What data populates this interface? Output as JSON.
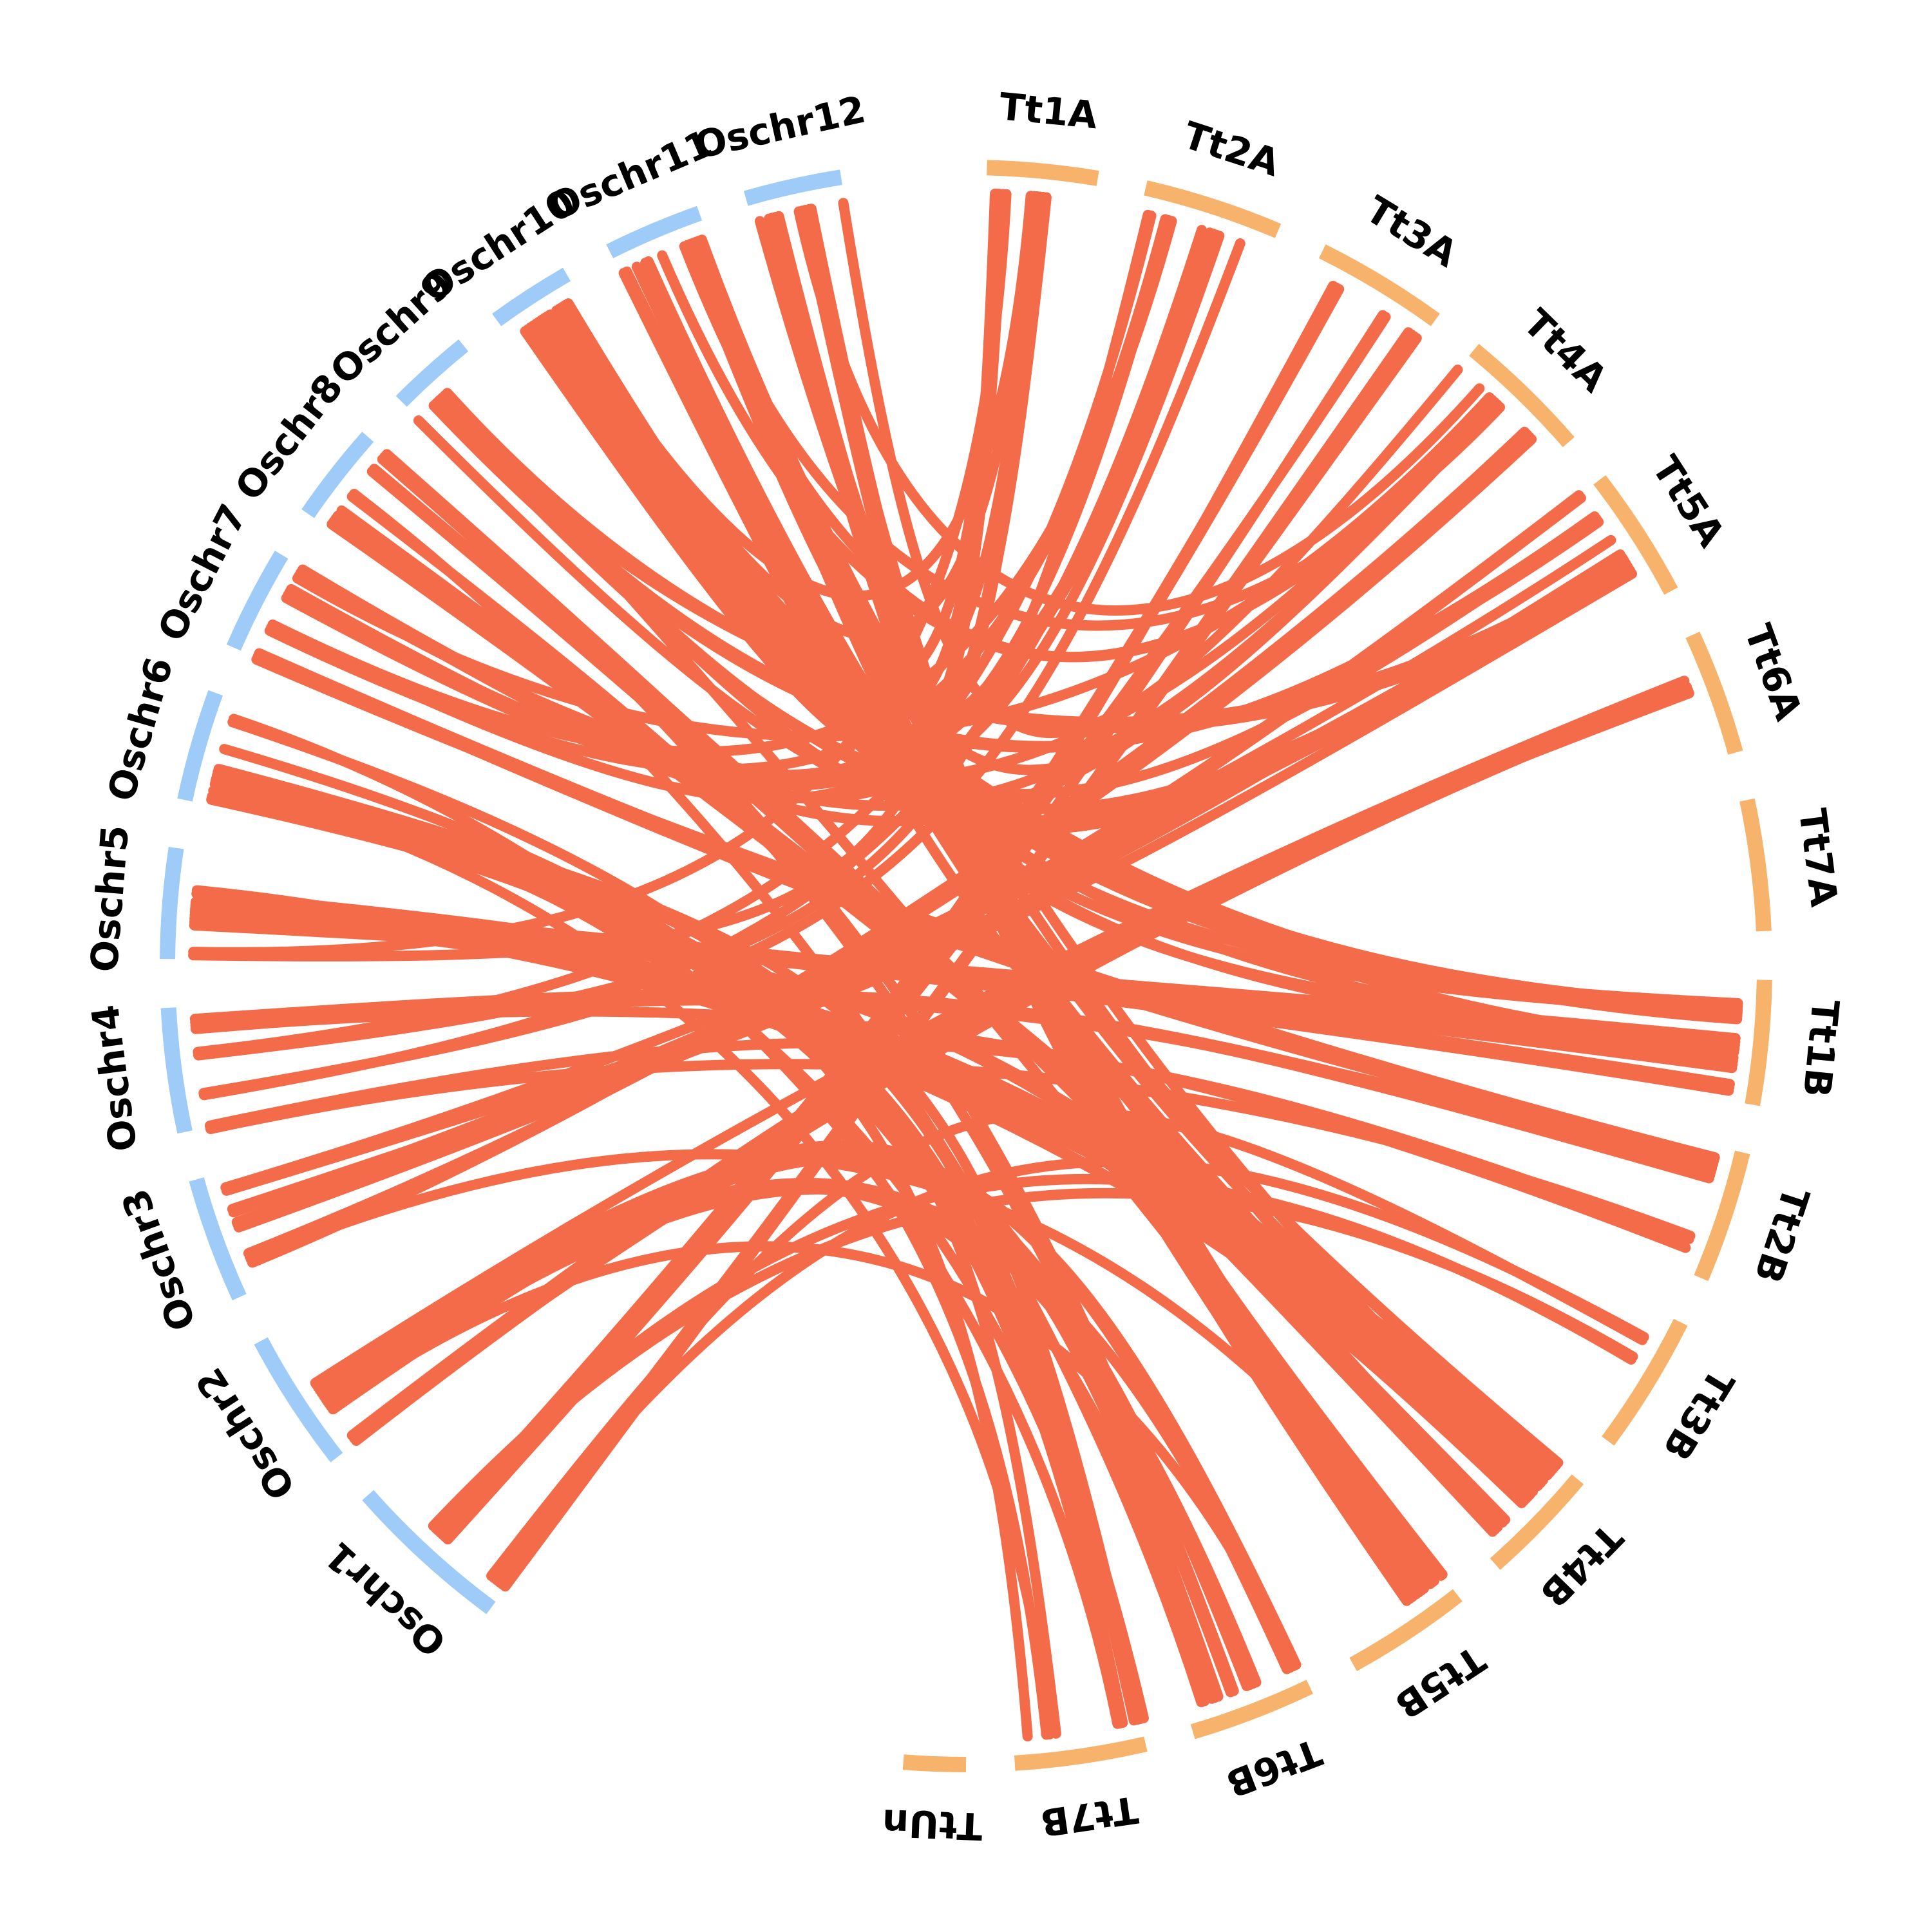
{
  "colors": {
    "wheat_segment": "#f7b26b",
    "rice_segment": "#9ecbf7",
    "link": "#f46b4a",
    "label": "#000000",
    "background": "#ffffff"
  },
  "segments": [
    {
      "id": "Tt1A",
      "label": "Tt1A",
      "group": "wheat"
    },
    {
      "id": "Tt2A",
      "label": "Tt2A",
      "group": "wheat"
    },
    {
      "id": "Tt3A",
      "label": "Tt3A",
      "group": "wheat"
    },
    {
      "id": "Tt4A",
      "label": "Tt4A",
      "group": "wheat"
    },
    {
      "id": "Tt5A",
      "label": "Tt5A",
      "group": "wheat"
    },
    {
      "id": "Tt6A",
      "label": "Tt6A",
      "group": "wheat"
    },
    {
      "id": "Tt7A",
      "label": "Tt7A",
      "group": "wheat"
    },
    {
      "id": "Tt1B",
      "label": "Tt1B",
      "group": "wheat"
    },
    {
      "id": "Tt2B",
      "label": "Tt2B",
      "group": "wheat"
    },
    {
      "id": "Tt3B",
      "label": "Tt3B",
      "group": "wheat"
    },
    {
      "id": "Tt4B",
      "label": "Tt4B",
      "group": "wheat"
    },
    {
      "id": "Tt5B",
      "label": "Tt5B",
      "group": "wheat"
    },
    {
      "id": "Tt6B",
      "label": "Tt6B",
      "group": "wheat"
    },
    {
      "id": "Tt7B",
      "label": "Tt7B",
      "group": "wheat"
    },
    {
      "id": "TtUn",
      "label": "TtUn",
      "group": "wheat"
    },
    {
      "id": "Oschr1",
      "label": "Oschr1",
      "group": "rice"
    },
    {
      "id": "Oschr2",
      "label": "Oschr2",
      "group": "rice"
    },
    {
      "id": "Oschr3",
      "label": "Oschr3",
      "group": "rice"
    },
    {
      "id": "Oschr4",
      "label": "Oschr4",
      "group": "rice"
    },
    {
      "id": "Oschr5",
      "label": "Oschr5",
      "group": "rice"
    },
    {
      "id": "Oschr6",
      "label": "Oschr6",
      "group": "rice"
    },
    {
      "id": "Oschr7",
      "label": "Oschr7",
      "group": "rice"
    },
    {
      "id": "Oschr8",
      "label": "Oschr8",
      "group": "rice"
    },
    {
      "id": "Oschr9",
      "label": "Oschr9",
      "group": "rice"
    },
    {
      "id": "Oschr10",
      "label": "Oschr10",
      "group": "rice"
    },
    {
      "id": "Oschr11",
      "label": "Oschr11",
      "group": "rice"
    },
    {
      "id": "Oschr12",
      "label": "Oschr12",
      "group": "rice"
    }
  ]
}
